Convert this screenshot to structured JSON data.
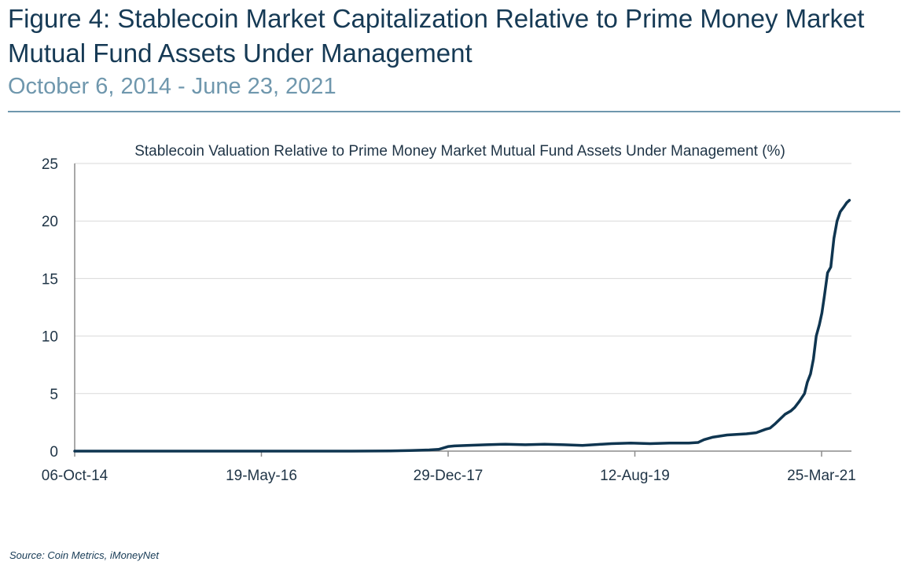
{
  "figure": {
    "title": "Figure 4:  Stablecoin Market Capitalization Relative to Prime Money Market Mutual Fund Assets Under Management",
    "subtitle": "October 6, 2014 - June 23, 2021",
    "source": "Source:  Coin Metrics, iMoneyNet"
  },
  "chart_data": {
    "type": "line",
    "title": "Stablecoin Valuation Relative to Prime Money Market Mutual Fund Assets Under Management (%)",
    "xlabel": "",
    "ylabel": "",
    "x_ticks": [
      "06-Oct-14",
      "19-May-16",
      "29-Dec-17",
      "12-Aug-19",
      "25-Mar-21"
    ],
    "y_ticks": [
      "0",
      "5",
      "10",
      "15",
      "20",
      "25"
    ],
    "ylim": [
      0,
      25
    ],
    "xlim": [
      "2014-10-06",
      "2021-06-23"
    ],
    "grid": "horizontal",
    "legend": "none",
    "line_color": "#0f3550",
    "series": [
      {
        "x": [
          "2014-10-06",
          "2015-06-01",
          "2016-01-01",
          "2016-09-01",
          "2017-03-01",
          "2017-07-01",
          "2017-09-01",
          "2017-11-01",
          "2017-12-01",
          "2018-01-01",
          "2018-01-20",
          "2018-03-01",
          "2018-05-01",
          "2018-07-01",
          "2018-09-01",
          "2018-11-01",
          "2019-01-01",
          "2019-03-01",
          "2019-05-01",
          "2019-06-01",
          "2019-08-01",
          "2019-10-01",
          "2019-12-01",
          "2020-02-01",
          "2020-03-01",
          "2020-03-20",
          "2020-04-15",
          "2020-06-01",
          "2020-07-01",
          "2020-08-01",
          "2020-09-01",
          "2020-10-01",
          "2020-10-15",
          "2020-11-01",
          "2020-12-01",
          "2020-12-20",
          "2021-01-01",
          "2021-01-15",
          "2021-02-01",
          "2021-02-10",
          "2021-02-20",
          "2021-03-01",
          "2021-03-10",
          "2021-03-20",
          "2021-03-28",
          "2021-04-05",
          "2021-04-15",
          "2021-04-25",
          "2021-05-05",
          "2021-05-15",
          "2021-05-25",
          "2021-06-05",
          "2021-06-15",
          "2021-06-23"
        ],
        "y": [
          0,
          0,
          0,
          0,
          0,
          0.02,
          0.05,
          0.1,
          0.15,
          0.4,
          0.45,
          0.5,
          0.55,
          0.6,
          0.55,
          0.6,
          0.55,
          0.5,
          0.6,
          0.65,
          0.7,
          0.65,
          0.7,
          0.7,
          0.75,
          1.0,
          1.2,
          1.4,
          1.45,
          1.5,
          1.6,
          1.9,
          2.0,
          2.4,
          3.2,
          3.5,
          3.8,
          4.3,
          5.0,
          6.0,
          6.7,
          8.0,
          10.0,
          11.0,
          12.0,
          13.5,
          15.5,
          16.0,
          18.5,
          20.0,
          20.8,
          21.2,
          21.6,
          21.8
        ]
      }
    ]
  }
}
